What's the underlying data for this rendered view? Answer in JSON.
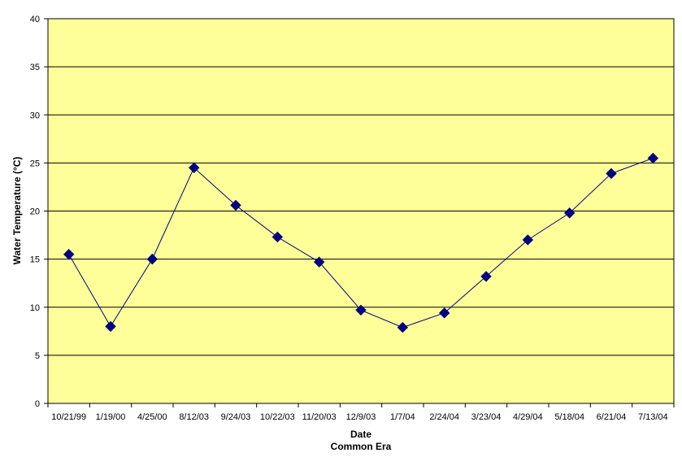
{
  "chart_data": {
    "type": "line",
    "title": "",
    "xlabel": "Date",
    "xlabel_sub": "Common Era",
    "ylabel": "Water Temperature (°C)",
    "categories": [
      "10/21/99",
      "1/19/00",
      "4/25/00",
      "8/12/03",
      "9/24/03",
      "10/22/03",
      "11/20/03",
      "12/9/03",
      "1/7/04",
      "2/24/04",
      "3/23/04",
      "4/29/04",
      "5/18/04",
      "6/21/04",
      "7/13/04"
    ],
    "series": [
      {
        "values": [
          15.5,
          8.0,
          15.0,
          24.5,
          20.6,
          17.3,
          14.7,
          9.7,
          7.9,
          9.4,
          13.2,
          17.0,
          19.8,
          23.9,
          25.5
        ]
      }
    ],
    "ylim": [
      0,
      40
    ],
    "yticks": [
      0,
      5,
      10,
      15,
      20,
      25,
      30,
      35,
      40
    ],
    "grid": true,
    "legend": "none",
    "colors": {
      "plot_background": "#ffff99",
      "line": "#000080",
      "marker": "#000080",
      "gridline": "#000000"
    }
  }
}
